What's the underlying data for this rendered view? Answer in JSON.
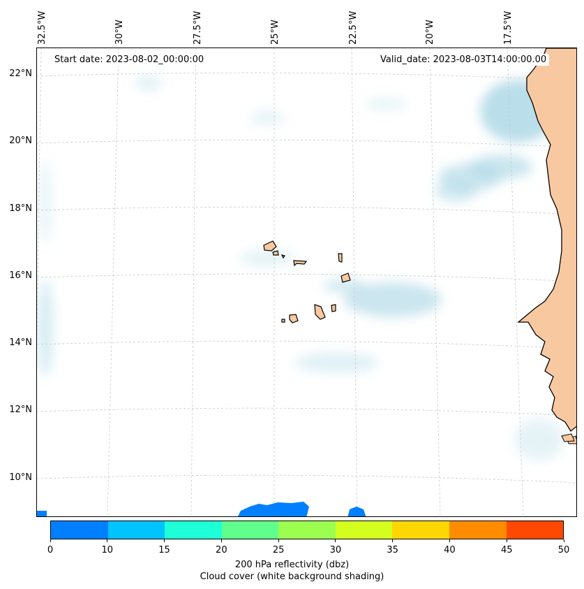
{
  "map": {
    "start_date": "Start date: 2023-08-02_00:00:00",
    "valid_date": "Valid_date: 2023-08-03T14:00:00.00",
    "lon_labels": [
      "32.5°W",
      "30°W",
      "27.5°W",
      "25°W",
      "22.5°W",
      "20°W",
      "17.5°W"
    ],
    "lat_labels": [
      "22°N",
      "20°N",
      "18°N",
      "16°N",
      "14°N",
      "12°N",
      "10°N"
    ],
    "colors": {
      "land": "#f8c9a0",
      "cloud": "#a9d6e5",
      "reflectivity_low": "#0080ff"
    }
  },
  "colorbar": {
    "ticks": [
      "0",
      "10",
      "15",
      "20",
      "25",
      "30",
      "35",
      "40",
      "45",
      "50"
    ],
    "colors": [
      "#0080ff",
      "#00c4ff",
      "#1effd8",
      "#60ff8c",
      "#9cff50",
      "#d4ff1e",
      "#ffd700",
      "#ff8c00",
      "#ff4800"
    ],
    "label": "200 hPa reflectivity (dbz)",
    "sublabel": "Cloud cover (white background shading)"
  }
}
